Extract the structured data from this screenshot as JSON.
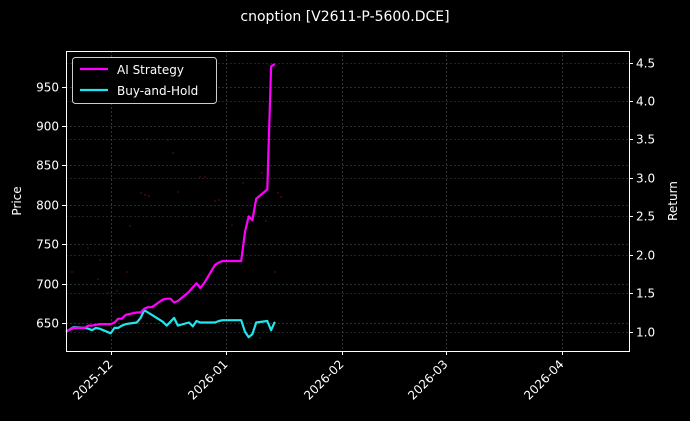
{
  "title": "cnoption [V2611-P-5600.DCE]",
  "chart_data": {
    "type": "line",
    "title": "cnoption [V2611-P-5600.DCE]",
    "xlabel": "",
    "ylabel": "Price",
    "ylabel_right": "Return",
    "x_ticks": [
      "2025-12",
      "2026-01",
      "2026-02",
      "2026-03",
      "2026-04"
    ],
    "y_ticks_left": [
      650,
      700,
      750,
      800,
      850,
      900,
      950
    ],
    "y_ticks_right": [
      1.0,
      1.5,
      2.0,
      2.5,
      3.0,
      3.5,
      4.0,
      4.5
    ],
    "ylim_left": [
      615,
      995
    ],
    "ylim_right": [
      0.75,
      4.65
    ],
    "xlim": [
      "2025-11-19",
      "2026-04-19"
    ],
    "grid": true,
    "legend_position": "upper left",
    "background": "#000000",
    "series": [
      {
        "name": "AI Strategy",
        "color": "#ff00ff",
        "axis": "right",
        "x": [
          "2025-11-19",
          "2025-11-21",
          "2025-11-24",
          "2025-11-25",
          "2025-11-26",
          "2025-11-27",
          "2025-11-28",
          "2025-12-01",
          "2025-12-02",
          "2025-12-03",
          "2025-12-04",
          "2025-12-05",
          "2025-12-08",
          "2025-12-09",
          "2025-12-10",
          "2025-12-11",
          "2025-12-12",
          "2025-12-15",
          "2025-12-16",
          "2025-12-17",
          "2025-12-18",
          "2025-12-19",
          "2025-12-22",
          "2025-12-23",
          "2025-12-24",
          "2025-12-25",
          "2025-12-26",
          "2025-12-29",
          "2025-12-30",
          "2025-12-31",
          "2026-01-05",
          "2026-01-06",
          "2026-01-07",
          "2026-01-08",
          "2026-01-09",
          "2026-01-12",
          "2026-01-13",
          "2026-01-14"
        ],
        "values": [
          1.0,
          1.05,
          1.05,
          1.08,
          1.08,
          1.09,
          1.1,
          1.1,
          1.12,
          1.17,
          1.17,
          1.22,
          1.25,
          1.25,
          1.3,
          1.32,
          1.32,
          1.42,
          1.43,
          1.43,
          1.38,
          1.4,
          1.52,
          1.58,
          1.63,
          1.57,
          1.63,
          1.87,
          1.9,
          1.92,
          1.92,
          2.3,
          2.5,
          2.45,
          2.73,
          2.85,
          4.45,
          4.48
        ]
      },
      {
        "name": "Buy-and-Hold",
        "color": "#22e5ee",
        "axis": "right",
        "x": [
          "2025-11-19",
          "2025-11-21",
          "2025-11-24",
          "2025-11-25",
          "2025-11-26",
          "2025-11-27",
          "2025-11-28",
          "2025-12-01",
          "2025-12-02",
          "2025-12-03",
          "2025-12-04",
          "2025-12-05",
          "2025-12-08",
          "2025-12-09",
          "2025-12-10",
          "2025-12-11",
          "2025-12-12",
          "2025-12-15",
          "2025-12-16",
          "2025-12-17",
          "2025-12-18",
          "2025-12-19",
          "2025-12-22",
          "2025-12-23",
          "2025-12-24",
          "2025-12-25",
          "2025-12-26",
          "2025-12-29",
          "2025-12-30",
          "2025-12-31",
          "2026-01-05",
          "2026-01-06",
          "2026-01-07",
          "2026-01-08",
          "2026-01-09",
          "2026-01-12",
          "2026-01-13",
          "2026-01-14"
        ],
        "values": [
          1.0,
          1.06,
          1.05,
          1.04,
          1.02,
          1.05,
          1.04,
          0.98,
          1.05,
          1.05,
          1.08,
          1.1,
          1.12,
          1.18,
          1.28,
          1.25,
          1.22,
          1.13,
          1.08,
          1.13,
          1.18,
          1.08,
          1.12,
          1.07,
          1.14,
          1.12,
          1.12,
          1.12,
          1.14,
          1.15,
          1.15,
          1.0,
          0.93,
          0.97,
          1.12,
          1.14,
          1.02,
          1.13
        ]
      }
    ],
    "scatter_overlay": {
      "description": "faint dark-red price points",
      "color": "#5a0a14"
    }
  }
}
